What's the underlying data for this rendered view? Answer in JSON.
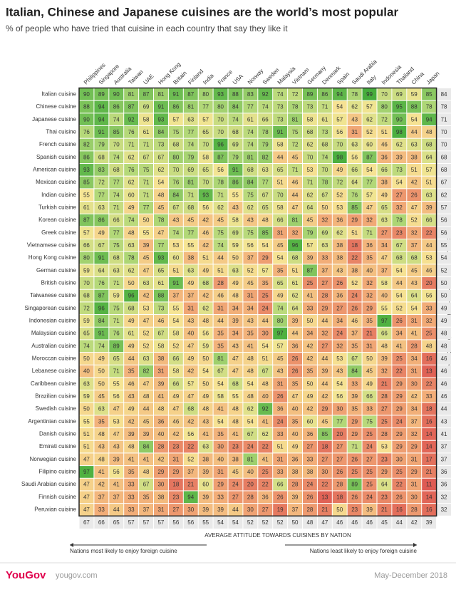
{
  "chart_data": {
    "type": "heatmap",
    "title": "Italian, Chinese and Japanese cuisines are the world’s most popular",
    "subtitle": "% of people who have tried that cuisine in each country that say they like it",
    "columns": [
      "Philippines",
      "Singapore",
      "Australia",
      "Taiwan",
      "UAE",
      "Hong Kong",
      "Britain",
      "Finland",
      "India",
      "France",
      "USA",
      "Norway",
      "Sweden",
      "Malaysia",
      "Vietnam",
      "Germany",
      "Denmark",
      "Spain",
      "Saudi Arabia",
      "Italy",
      "Indonesia",
      "Thailand",
      "China",
      "Japan"
    ],
    "rows": [
      "Italian cuisine",
      "Chinese cuisine",
      "Japanese cuisine",
      "Thai cuisine",
      "French cuisine",
      "Spanish cuisine",
      "American cuisine",
      "Mexican cuisine",
      "Indian cuisine",
      "Turkish cuisine",
      "Korean cuisine",
      "Greek cuisine",
      "Vietnamese cuisine",
      "Hong Kong cuisine",
      "German cuisine",
      "British cuisine",
      "Taiwanese cuisine",
      "Singaporean cuisine",
      "Indonesian cuisine",
      "Malaysian cuisine",
      "Australian cuisine",
      "Moroccan cuisine",
      "Lebanese cuisine",
      "Caribbean cuisine",
      "Brazilian cuisine",
      "Swedish cuisine",
      "Argentinian cuisine",
      "Danish cuisine",
      "Emirati cuisine",
      "Norwegian cuisine",
      "Filipino cuisine",
      "Saudi Arabian cuisine",
      "Finnish cuisine",
      "Peruvian cuisine"
    ],
    "values": [
      [
        90,
        89,
        90,
        81,
        87,
        81,
        91,
        87,
        80,
        93,
        88,
        83,
        92,
        74,
        72,
        89,
        86,
        94,
        78,
        99,
        70,
        69,
        59,
        85
      ],
      [
        88,
        94,
        86,
        87,
        69,
        91,
        86,
        81,
        77,
        80,
        84,
        77,
        74,
        73,
        78,
        73,
        71,
        54,
        62,
        57,
        80,
        95,
        88,
        78
      ],
      [
        90,
        94,
        74,
        92,
        58,
        93,
        57,
        63,
        57,
        70,
        74,
        61,
        66,
        73,
        81,
        58,
        61,
        57,
        43,
        62,
        72,
        90,
        54,
        94
      ],
      [
        76,
        91,
        85,
        76,
        61,
        84,
        75,
        77,
        65,
        70,
        68,
        74,
        78,
        91,
        75,
        68,
        73,
        56,
        31,
        52,
        51,
        98,
        44,
        48
      ],
      [
        82,
        79,
        70,
        71,
        71,
        73,
        68,
        74,
        70,
        96,
        69,
        74,
        79,
        58,
        72,
        62,
        68,
        70,
        63,
        60,
        46,
        62,
        63,
        68
      ],
      [
        86,
        68,
        74,
        62,
        67,
        67,
        80,
        79,
        58,
        87,
        79,
        81,
        82,
        44,
        45,
        70,
        74,
        98,
        56,
        87,
        36,
        39,
        38,
        64
      ],
      [
        93,
        83,
        68,
        76,
        75,
        62,
        70,
        69,
        65,
        56,
        91,
        68,
        63,
        65,
        71,
        53,
        70,
        49,
        66,
        54,
        66,
        73,
        51,
        57
      ],
      [
        85,
        72,
        77,
        62,
        71,
        54,
        76,
        81,
        70,
        78,
        86,
        84,
        77,
        51,
        46,
        71,
        78,
        72,
        64,
        77,
        38,
        54,
        42,
        51
      ],
      [
        55,
        77,
        74,
        60,
        71,
        48,
        84,
        71,
        93,
        71,
        55,
        75,
        67,
        70,
        44,
        62,
        67,
        52,
        76,
        57,
        49,
        27,
        26,
        63
      ],
      [
        61,
        63,
        71,
        49,
        77,
        45,
        67,
        68,
        56,
        62,
        43,
        62,
        65,
        58,
        47,
        64,
        50,
        53,
        85,
        47,
        65,
        32,
        47,
        39
      ],
      [
        87,
        86,
        66,
        74,
        50,
        78,
        43,
        45,
        42,
        45,
        58,
        43,
        48,
        66,
        81,
        45,
        32,
        36,
        29,
        32,
        63,
        78,
        52,
        66
      ],
      [
        57,
        49,
        77,
        48,
        55,
        47,
        74,
        77,
        46,
        75,
        69,
        75,
        85,
        31,
        32,
        79,
        69,
        62,
        51,
        71,
        27,
        23,
        32,
        22
      ],
      [
        66,
        67,
        75,
        63,
        39,
        77,
        53,
        55,
        42,
        74,
        59,
        56,
        54,
        45,
        96,
        57,
        63,
        38,
        18,
        36,
        34,
        67,
        37,
        44
      ],
      [
        80,
        91,
        68,
        78,
        45,
        93,
        60,
        38,
        51,
        44,
        50,
        37,
        29,
        54,
        68,
        39,
        33,
        38,
        22,
        35,
        47,
        68,
        68,
        53
      ],
      [
        59,
        64,
        63,
        62,
        47,
        65,
        51,
        63,
        49,
        51,
        63,
        52,
        57,
        35,
        51,
        87,
        37,
        43,
        38,
        40,
        37,
        54,
        45,
        46
      ],
      [
        70,
        76,
        71,
        50,
        63,
        61,
        91,
        49,
        68,
        28,
        49,
        45,
        35,
        65,
        61,
        25,
        27,
        26,
        52,
        32,
        58,
        44,
        43,
        20
      ],
      [
        68,
        87,
        59,
        96,
        42,
        88,
        37,
        37,
        42,
        46,
        48,
        31,
        25,
        49,
        62,
        41,
        28,
        36,
        24,
        32,
        40,
        54,
        64,
        56
      ],
      [
        72,
        96,
        75,
        68,
        53,
        73,
        55,
        31,
        62,
        31,
        34,
        34,
        24,
        74,
        64,
        33,
        29,
        27,
        26,
        29,
        55,
        52,
        54,
        33
      ],
      [
        59,
        84,
        71,
        49,
        47,
        46,
        54,
        43,
        48,
        44,
        39,
        43,
        44,
        80,
        39,
        50,
        44,
        34,
        46,
        35,
        97,
        26,
        31,
        32
      ],
      [
        65,
        91,
        76,
        61,
        52,
        67,
        58,
        40,
        56,
        35,
        34,
        35,
        30,
        97,
        44,
        34,
        32,
        24,
        37,
        21,
        66,
        34,
        41,
        25
      ],
      [
        74,
        74,
        89,
        49,
        52,
        58,
        52,
        47,
        59,
        35,
        43,
        41,
        54,
        57,
        36,
        42,
        27,
        32,
        35,
        31,
        48,
        41,
        28,
        48
      ],
      [
        50,
        49,
        65,
        44,
        63,
        38,
        66,
        49,
        50,
        81,
        47,
        48,
        51,
        45,
        26,
        42,
        44,
        53,
        67,
        50,
        39,
        25,
        34,
        16
      ],
      [
        40,
        50,
        71,
        35,
        82,
        31,
        58,
        42,
        54,
        67,
        47,
        48,
        67,
        43,
        26,
        35,
        39,
        43,
        84,
        45,
        32,
        22,
        31,
        13
      ],
      [
        63,
        50,
        55,
        46,
        47,
        39,
        66,
        57,
        50,
        54,
        68,
        54,
        48,
        31,
        35,
        50,
        44,
        54,
        33,
        49,
        21,
        29,
        30,
        22
      ],
      [
        59,
        45,
        56,
        43,
        48,
        41,
        49,
        47,
        49,
        58,
        55,
        48,
        40,
        26,
        47,
        49,
        42,
        56,
        39,
        66,
        28,
        29,
        42,
        33
      ],
      [
        50,
        63,
        47,
        49,
        44,
        48,
        47,
        68,
        48,
        41,
        48,
        62,
        92,
        36,
        40,
        42,
        29,
        30,
        35,
        33,
        27,
        29,
        34,
        18
      ],
      [
        55,
        35,
        53,
        42,
        45,
        36,
        46,
        42,
        43,
        54,
        48,
        54,
        41,
        24,
        35,
        60,
        45,
        77,
        29,
        75,
        25,
        24,
        37,
        16
      ],
      [
        51,
        48,
        47,
        39,
        39,
        40,
        42,
        56,
        41,
        35,
        41,
        67,
        62,
        33,
        40,
        36,
        85,
        20,
        29,
        25,
        28,
        29,
        32,
        14
      ],
      [
        51,
        43,
        43,
        48,
        84,
        28,
        23,
        22,
        63,
        30,
        23,
        24,
        22,
        51,
        49,
        27,
        18,
        27,
        71,
        24,
        53,
        29,
        29,
        14
      ],
      [
        47,
        48,
        39,
        41,
        41,
        42,
        31,
        52,
        38,
        40,
        38,
        81,
        41,
        31,
        36,
        33,
        27,
        27,
        26,
        27,
        23,
        30,
        31,
        17
      ],
      [
        97,
        41,
        56,
        35,
        48,
        29,
        29,
        37,
        39,
        31,
        45,
        40,
        25,
        33,
        38,
        38,
        30,
        26,
        25,
        25,
        29,
        25,
        29,
        21
      ],
      [
        47,
        42,
        41,
        33,
        67,
        30,
        18,
        21,
        60,
        29,
        24,
        20,
        22,
        66,
        28,
        24,
        22,
        28,
        89,
        25,
        64,
        22,
        31,
        11
      ],
      [
        47,
        37,
        37,
        33,
        35,
        38,
        23,
        94,
        39,
        33,
        27,
        28,
        36,
        26,
        39,
        26,
        13,
        18,
        26,
        24,
        23,
        26,
        30,
        14
      ],
      [
        47,
        33,
        44,
        33,
        37,
        31,
        27,
        30,
        39,
        39,
        44,
        30,
        27,
        19,
        37,
        28,
        21,
        50,
        23,
        39,
        21,
        16,
        28,
        16
      ]
    ],
    "row_averages": [
      84,
      78,
      71,
      70,
      70,
      68,
      68,
      67,
      62,
      57,
      56,
      56,
      55,
      54,
      52,
      50,
      50,
      49,
      49,
      48,
      48,
      46,
      46,
      46,
      46,
      44,
      43,
      41,
      37,
      37,
      36,
      36,
      32,
      32
    ],
    "column_averages": [
      67,
      66,
      65,
      57,
      57,
      57,
      56,
      56,
      55,
      54,
      54,
      52,
      52,
      52,
      50,
      48,
      47,
      46,
      46,
      46,
      45,
      44,
      42,
      39
    ],
    "colors": [
      "#de5b53",
      "#f2ad78",
      "#f6e594",
      "#b2d878",
      "#46ad3c"
    ],
    "right_label": "AVERAGE CUISINE POPULARITY",
    "x_axis_label": "AVERAGE ATTITUDE TOWARDS CUISINES BY NATION",
    "note_left": "Nations most likely to enjoy foreign cuisine",
    "note_right": "Nations least likely to enjoy foreign cuisine"
  },
  "footer": {
    "brand": "YouGov",
    "website": "yougov.com",
    "date": "May-December 2018"
  }
}
